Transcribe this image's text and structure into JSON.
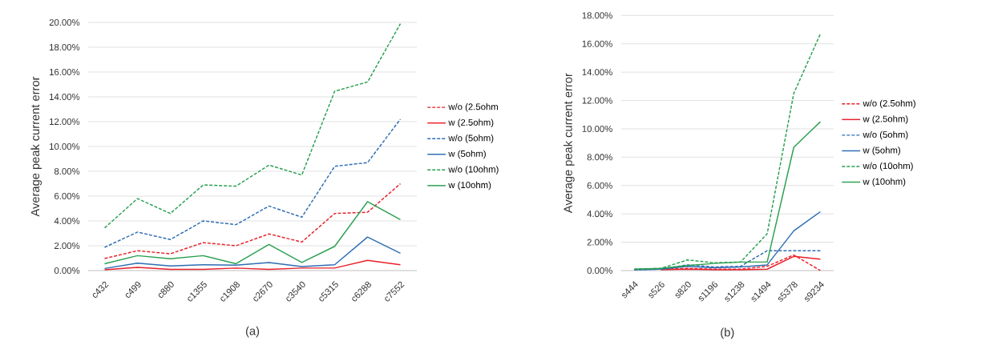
{
  "chart_data": [
    {
      "type": "line",
      "ylabel": "Average peak current error",
      "annotations": [
        "(a)"
      ],
      "categories": [
        "c432",
        "c499",
        "c880",
        "c1355",
        "c1908",
        "c2670",
        "c3540",
        "c5315",
        "c6288",
        "c7552"
      ],
      "series": [
        {
          "name": "w/o (2.5ohm",
          "color": "#e8202a",
          "line_style": "dashed",
          "values": [
            0.97,
            1.6,
            1.35,
            2.25,
            2.0,
            2.95,
            2.3,
            4.6,
            4.7,
            7.0
          ]
        },
        {
          "name": "w (2.5ohm)",
          "color": "#e8202a",
          "line_style": "solid",
          "values": [
            0.06,
            0.26,
            0.1,
            0.1,
            0.2,
            0.1,
            0.2,
            0.2,
            0.82,
            0.47
          ]
        },
        {
          "name": "w/o (5ohm)",
          "color": "#2e6db4",
          "line_style": "dashed",
          "values": [
            1.87,
            3.1,
            2.5,
            4.0,
            3.7,
            5.2,
            4.3,
            8.4,
            8.7,
            12.2
          ]
        },
        {
          "name": "w (5ohm)",
          "color": "#2e6db4",
          "line_style": "solid",
          "values": [
            0.17,
            0.6,
            0.37,
            0.47,
            0.43,
            0.65,
            0.32,
            0.47,
            2.7,
            1.4
          ]
        },
        {
          "name": "w/o (10ohm)",
          "color": "#2aa050",
          "line_style": "dashed",
          "values": [
            3.44,
            5.8,
            4.6,
            6.9,
            6.8,
            8.5,
            7.7,
            14.45,
            15.2,
            19.9
          ]
        },
        {
          "name": "w (10ohm)",
          "color": "#2aa050",
          "line_style": "solid",
          "values": [
            0.55,
            1.2,
            0.95,
            1.2,
            0.55,
            2.1,
            0.65,
            1.95,
            5.55,
            4.1
          ]
        }
      ],
      "ylim": [
        0,
        20
      ],
      "yticks": [
        {
          "value": 0,
          "label": "0.00%"
        },
        {
          "value": 2,
          "label": "2.00%"
        },
        {
          "value": 4,
          "label": "4.00%"
        },
        {
          "value": 6,
          "label": "6.00%"
        },
        {
          "value": 8,
          "label": "8.00%"
        },
        {
          "value": 10,
          "label": "10.00%"
        },
        {
          "value": 12,
          "label": "12.00%"
        },
        {
          "value": 14,
          "label": "14.00%"
        },
        {
          "value": 16,
          "label": "16.00%"
        },
        {
          "value": 18,
          "label": "18.00%"
        },
        {
          "value": 20,
          "label": "20.00%"
        }
      ],
      "grid": "y",
      "legend": "right"
    },
    {
      "type": "line",
      "ylabel": "Average peak current error",
      "annotations": [
        "(b)"
      ],
      "categories": [
        "s444",
        "s526",
        "s820",
        "s1196",
        "s1238",
        "s1494",
        "s5378",
        "s9234"
      ],
      "series": [
        {
          "name": "w/o (2.5ohm)",
          "color": "#e8202a",
          "line_style": "dashed",
          "values": [
            null,
            0.1,
            0.15,
            0.1,
            0.1,
            0.3,
            1.1,
            0.0
          ]
        },
        {
          "name": "w (2.5ohm)",
          "color": "#e8202a",
          "line_style": "solid",
          "values": [
            null,
            0.05,
            0.1,
            0.05,
            0.05,
            0.1,
            1.0,
            0.8
          ]
        },
        {
          "name": "w/o (5ohm)",
          "color": "#2e6db4",
          "line_style": "dashed",
          "values": [
            0.05,
            0.1,
            0.4,
            0.25,
            0.3,
            1.4,
            1.4,
            1.4
          ]
        },
        {
          "name": "w (5ohm)",
          "color": "#2e6db4",
          "line_style": "solid",
          "values": [
            0.05,
            0.1,
            0.3,
            0.2,
            0.25,
            0.4,
            2.8,
            4.15
          ]
        },
        {
          "name": "w/o (10ohm)",
          "color": "#2aa050",
          "line_style": "dashed",
          "values": [
            0.1,
            0.15,
            0.75,
            0.55,
            0.6,
            2.6,
            12.5,
            16.7
          ]
        },
        {
          "name": "w (10ohm)",
          "color": "#2aa050",
          "line_style": "solid",
          "values": [
            0.1,
            0.15,
            0.35,
            0.5,
            0.6,
            0.6,
            8.7,
            10.5
          ]
        }
      ],
      "ylim": [
        0,
        18
      ],
      "yticks": [
        {
          "value": 0,
          "label": "0.00%"
        },
        {
          "value": 2,
          "label": "2.00%"
        },
        {
          "value": 4,
          "label": "4.00%"
        },
        {
          "value": 6,
          "label": "6.00%"
        },
        {
          "value": 8,
          "label": "8.00%"
        },
        {
          "value": 10,
          "label": "10.00%"
        },
        {
          "value": 12,
          "label": "12.00%"
        },
        {
          "value": 14,
          "label": "14.00%"
        },
        {
          "value": 16,
          "label": "16.00%"
        },
        {
          "value": 18,
          "label": "18.00%"
        }
      ],
      "grid": "y",
      "legend": "right"
    }
  ]
}
